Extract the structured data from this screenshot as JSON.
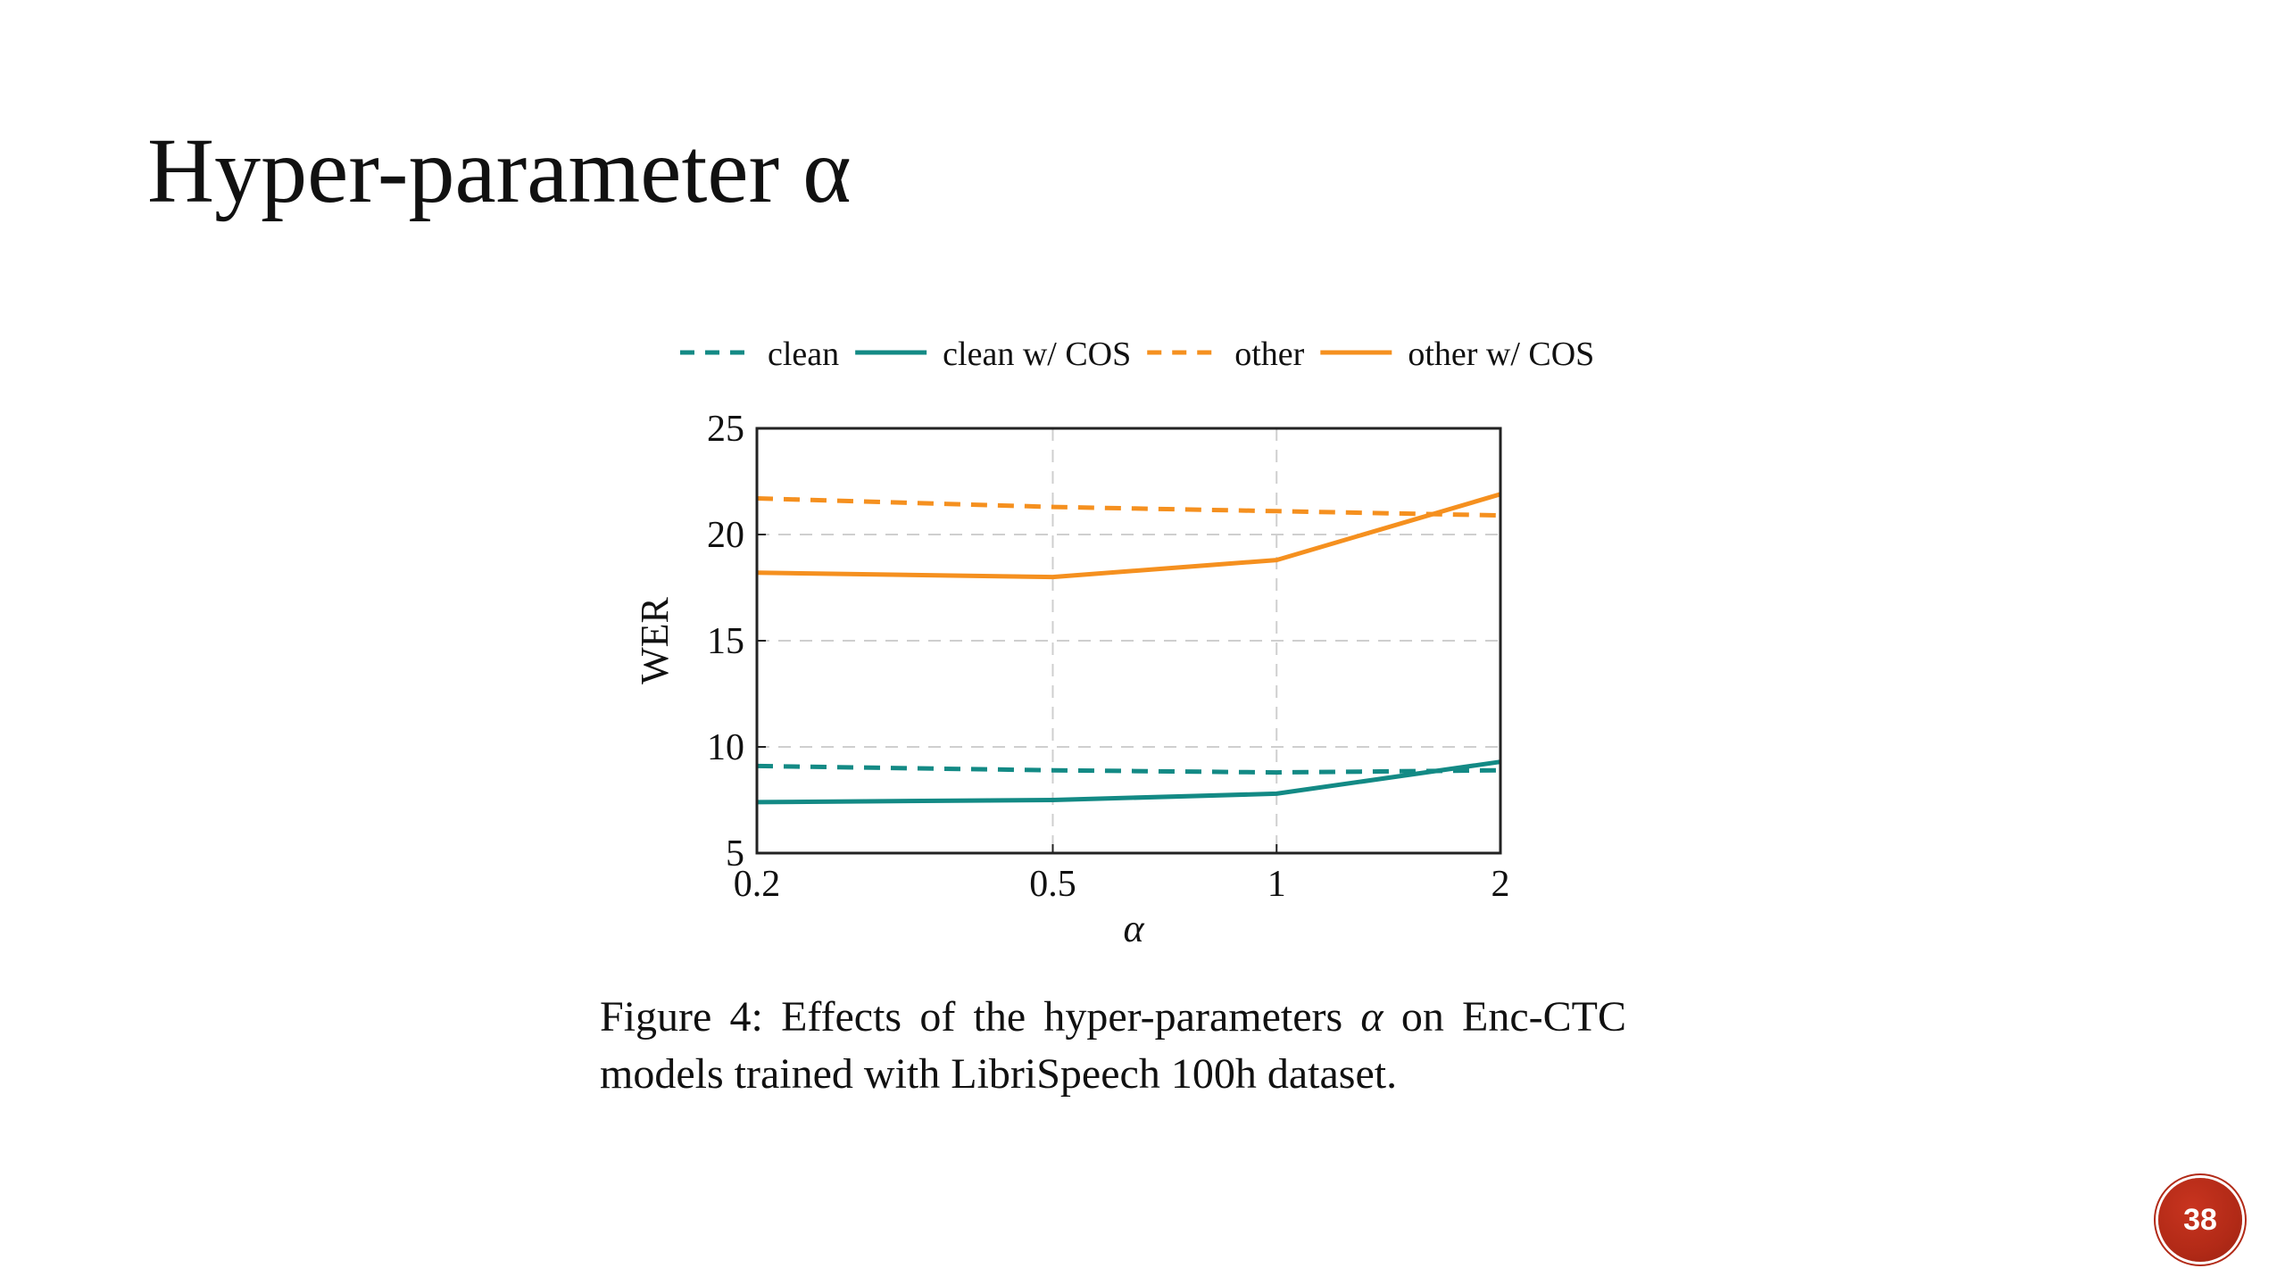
{
  "slide": {
    "title": "Hyper-parameter α",
    "page_number": "38"
  },
  "caption": {
    "prefix": "Figure 4:  Effects of the hyper-parameters ",
    "symbol": "α",
    "suffix": " on Enc-CTC models trained with LibriSpeech 100h dataset."
  },
  "colors": {
    "teal": "#138a85",
    "orange": "#f5901f",
    "grid": "#cfcfcf",
    "axis": "#222222"
  },
  "chart_data": {
    "type": "line",
    "xlabel": "α",
    "ylabel": "WER",
    "x_ticks": [
      "0.2",
      "0.5",
      "1",
      "2"
    ],
    "x_tick_values": [
      0.2,
      0.5,
      1,
      2
    ],
    "y_ticks": [
      5,
      10,
      15,
      20,
      25
    ],
    "ylim": [
      5,
      25
    ],
    "x_scale": "log",
    "grid": "dashed",
    "legend_position": "top",
    "x": [
      0.2,
      0.5,
      1,
      2
    ],
    "series": [
      {
        "name": "clean",
        "style": "dashed",
        "color": "#138a85",
        "values": [
          9.1,
          8.9,
          8.8,
          8.9
        ]
      },
      {
        "name": "clean w/ COS",
        "style": "solid",
        "color": "#138a85",
        "values": [
          7.4,
          7.5,
          7.8,
          9.3
        ]
      },
      {
        "name": "other",
        "style": "dashed",
        "color": "#f5901f",
        "values": [
          21.7,
          21.3,
          21.1,
          20.9
        ]
      },
      {
        "name": "other w/ COS",
        "style": "solid",
        "color": "#f5901f",
        "values": [
          18.2,
          18.0,
          18.8,
          21.9
        ]
      }
    ]
  }
}
